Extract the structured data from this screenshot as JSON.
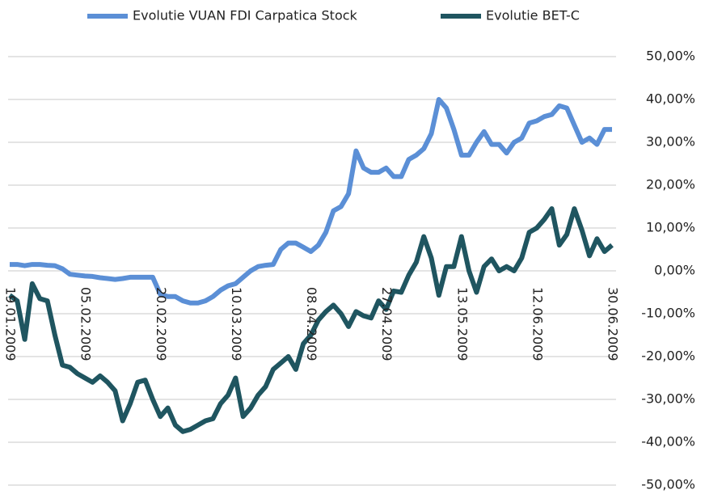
{
  "chart_data": {
    "type": "line",
    "categories": [
      "19.01.2009",
      null,
      null,
      null,
      null,
      null,
      null,
      null,
      null,
      null,
      "05.02.2009",
      null,
      null,
      null,
      null,
      null,
      null,
      null,
      null,
      null,
      "20.02.2009",
      null,
      null,
      null,
      null,
      null,
      null,
      null,
      null,
      null,
      "10.03.2009",
      null,
      null,
      null,
      null,
      null,
      null,
      null,
      null,
      null,
      "08.04.2009",
      null,
      null,
      null,
      null,
      null,
      null,
      null,
      null,
      null,
      "27.04.2009",
      null,
      null,
      null,
      null,
      null,
      null,
      null,
      null,
      null,
      "13.05.2009",
      null,
      null,
      null,
      null,
      null,
      null,
      null,
      null,
      null,
      "12.06.2009",
      null,
      null,
      null,
      null,
      null,
      null,
      null,
      null,
      null,
      "30.06.2009"
    ],
    "series": [
      {
        "name": "Evolutie VUAN FDI Carpatica Stock",
        "color": "#5b8fd6",
        "values": [
          1.5,
          1.5,
          1.2,
          1.5,
          1.5,
          1.3,
          1.2,
          0.5,
          -0.8,
          -1,
          -1.2,
          -1.3,
          -1.6,
          -1.8,
          -2,
          -1.8,
          -1.5,
          -1.5,
          -1.5,
          -1.5,
          -5.5,
          -6,
          -6,
          -7,
          -7.5,
          -7.5,
          -7,
          -6,
          -4.5,
          -3.5,
          -3,
          -1.5,
          0,
          1,
          1.3,
          1.5,
          5,
          6.5,
          6.5,
          5.5,
          4.5,
          6,
          9,
          14,
          15,
          18,
          28,
          24,
          23,
          23,
          24,
          22,
          22,
          26,
          27,
          28.5,
          32,
          40,
          38,
          33,
          27,
          27,
          30,
          32.5,
          29.5,
          29.5,
          27.5,
          30,
          31,
          34.5,
          35,
          36,
          36.5,
          38.5,
          38,
          34,
          30,
          31,
          29.5,
          33,
          33
        ]
      },
      {
        "name": "Evolutie BET-C",
        "color": "#1f5560",
        "values": [
          -5.7,
          -7,
          -16,
          -3,
          -6.5,
          -7,
          -15,
          -22,
          -22.5,
          -24,
          -25,
          -26,
          -24.5,
          -26,
          -28,
          -35,
          -31,
          -26,
          -25.5,
          -30,
          -34,
          -32,
          -36,
          -37.5,
          -37,
          -36,
          -35,
          -34.5,
          -31,
          -29,
          -25,
          -34,
          -32,
          -29,
          -27,
          -23,
          -21.5,
          -20,
          -23,
          -17,
          -15,
          -11.5,
          -9.5,
          -8,
          -10,
          -13,
          -9.5,
          -10.5,
          -11,
          -7,
          -9,
          -4.7,
          -5,
          -1,
          2,
          8,
          3,
          -5.7,
          1,
          1,
          8,
          0,
          -5,
          1,
          2.8,
          0,
          1,
          0,
          3,
          9,
          10,
          12,
          14.5,
          6,
          8.5,
          14.5,
          9.5,
          3.5,
          7.5,
          4.5,
          6
        ]
      }
    ],
    "ylim": [
      -50,
      50
    ],
    "yticks": [
      {
        "value": -50,
        "label": "-50,00%"
      },
      {
        "value": -40,
        "label": "-40,00%"
      },
      {
        "value": -30,
        "label": "-30,00%"
      },
      {
        "value": -20,
        "label": "-20,00%"
      },
      {
        "value": -10,
        "label": "-10,00%"
      },
      {
        "value": 0,
        "label": "0,00%"
      },
      {
        "value": 10,
        "label": "10,00%"
      },
      {
        "value": 20,
        "label": "20,00%"
      },
      {
        "value": 30,
        "label": "30,00%"
      },
      {
        "value": 40,
        "label": "40,00%"
      },
      {
        "value": 50,
        "label": "50,00%"
      }
    ],
    "grid": true,
    "legend": "top"
  }
}
